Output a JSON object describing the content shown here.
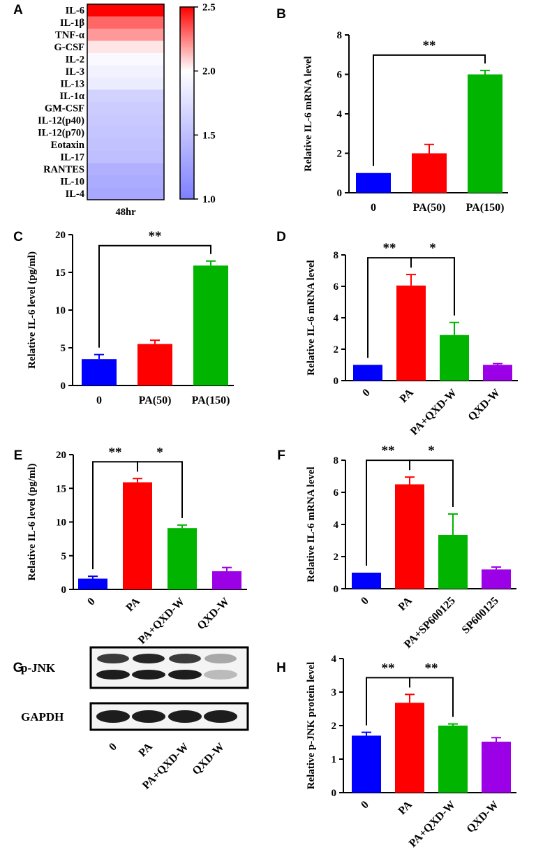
{
  "colors": {
    "blue": "#0000ff",
    "red": "#ff0000",
    "green": "#00b400",
    "purple": "#9c00e6"
  },
  "chart_data": [
    {
      "panel": "A",
      "type": "heatmap",
      "rows": [
        "IL-6",
        "IL-1β",
        "TNF-α",
        "G-CSF",
        "IL-2",
        "IL-3",
        "IL-13",
        "IL-1α",
        "GM-CSF",
        "IL-12(p40)",
        "IL-12(p70)",
        "Eotaxin",
        "IL-17",
        "RANTES",
        "IL-10",
        "IL-4"
      ],
      "columns": [
        "48hr"
      ],
      "values": [
        2.5,
        2.3,
        2.2,
        2.05,
        1.95,
        1.9,
        1.85,
        1.65,
        1.6,
        1.58,
        1.55,
        1.52,
        1.5,
        1.38,
        1.35,
        1.32
      ],
      "colorbar": {
        "min": 1.0,
        "max": 2.5,
        "ticks": [
          "1.0",
          "1.5",
          "2.0",
          "2.5"
        ],
        "low_color": "#7f7fff",
        "mid_color": "#ffffff",
        "high_color": "#ff0000"
      }
    },
    {
      "panel": "B",
      "type": "bar",
      "categories": [
        "0",
        "PA(50)",
        "PA(150)"
      ],
      "values": [
        1.0,
        2.0,
        6.0
      ],
      "errors": [
        0,
        0.45,
        0.2
      ],
      "colors": [
        "blue",
        "red",
        "green"
      ],
      "ylabel": "Relative IL-6 mRNA level",
      "ylim": [
        0,
        8
      ],
      "yticks": [
        "0",
        "2",
        "4",
        "6",
        "8"
      ],
      "significance": [
        {
          "from": 0,
          "to": 2,
          "label": "**"
        }
      ]
    },
    {
      "panel": "C",
      "type": "bar",
      "categories": [
        "0",
        "PA(50)",
        "PA(150)"
      ],
      "values": [
        3.5,
        5.5,
        15.9
      ],
      "errors": [
        0.6,
        0.5,
        0.6
      ],
      "colors": [
        "blue",
        "red",
        "green"
      ],
      "ylabel": "Relative IL-6 level (pg/ml)",
      "ylim": [
        0,
        20
      ],
      "yticks": [
        "0",
        "5",
        "10",
        "15",
        "20"
      ],
      "significance": [
        {
          "from": 0,
          "to": 2,
          "label": "**"
        }
      ]
    },
    {
      "panel": "D",
      "type": "bar",
      "categories": [
        "0",
        "PA",
        "PA+QXD-W",
        "QXD-W"
      ],
      "values": [
        1.0,
        6.05,
        2.9,
        1.0
      ],
      "errors": [
        0,
        0.7,
        0.8,
        0.08
      ],
      "colors": [
        "blue",
        "red",
        "green",
        "purple"
      ],
      "ylabel": "Relative IL-6 mRNA level",
      "ylim": [
        0,
        8
      ],
      "yticks": [
        "0",
        "2",
        "4",
        "6",
        "8"
      ],
      "significance": [
        {
          "from": 0,
          "to": 1,
          "label": "**"
        },
        {
          "from": 1,
          "to": 2,
          "label": "*"
        }
      ]
    },
    {
      "panel": "E",
      "type": "bar",
      "categories": [
        "0",
        "PA",
        "PA+QXD-W",
        "QXD-W"
      ],
      "values": [
        1.6,
        15.9,
        9.1,
        2.7
      ],
      "errors": [
        0.35,
        0.55,
        0.45,
        0.55
      ],
      "colors": [
        "blue",
        "red",
        "green",
        "purple"
      ],
      "ylabel": "Relative IL-6 level (pg/ml)",
      "ylim": [
        0,
        20
      ],
      "yticks": [
        "0",
        "5",
        "10",
        "15",
        "20"
      ],
      "significance": [
        {
          "from": 0,
          "to": 1,
          "label": "**"
        },
        {
          "from": 1,
          "to": 2,
          "label": "*"
        }
      ]
    },
    {
      "panel": "F",
      "type": "bar",
      "categories": [
        "0",
        "PA",
        "PA+SP600125",
        "SP600125"
      ],
      "values": [
        1.0,
        6.5,
        3.35,
        1.2
      ],
      "errors": [
        0,
        0.45,
        1.3,
        0.15
      ],
      "colors": [
        "blue",
        "red",
        "green",
        "purple"
      ],
      "ylabel": "Relative IL-6 mRNA level",
      "ylim": [
        0,
        8
      ],
      "yticks": [
        "0",
        "2",
        "4",
        "6",
        "8"
      ],
      "significance": [
        {
          "from": 0,
          "to": 1,
          "label": "**"
        },
        {
          "from": 1,
          "to": 2,
          "label": "*"
        }
      ]
    },
    {
      "panel": "G",
      "type": "western_blot",
      "bands": [
        "p-JNK",
        "GAPDH"
      ],
      "lanes": [
        "0",
        "PA",
        "PA+QXD-W",
        "QXD-W"
      ]
    },
    {
      "panel": "H",
      "type": "bar",
      "categories": [
        "0",
        "PA",
        "PA+QXD-W",
        "QXD-W"
      ],
      "values": [
        1.7,
        2.68,
        2.0,
        1.52
      ],
      "errors": [
        0.1,
        0.25,
        0.05,
        0.12
      ],
      "colors": [
        "blue",
        "red",
        "green",
        "purple"
      ],
      "ylabel": "Relative p-JNK protein level",
      "ylim": [
        0,
        4
      ],
      "yticks": [
        "0",
        "1",
        "2",
        "3",
        "4"
      ],
      "significance": [
        {
          "from": 0,
          "to": 1,
          "label": "**"
        },
        {
          "from": 1,
          "to": 2,
          "label": "**"
        }
      ]
    }
  ]
}
